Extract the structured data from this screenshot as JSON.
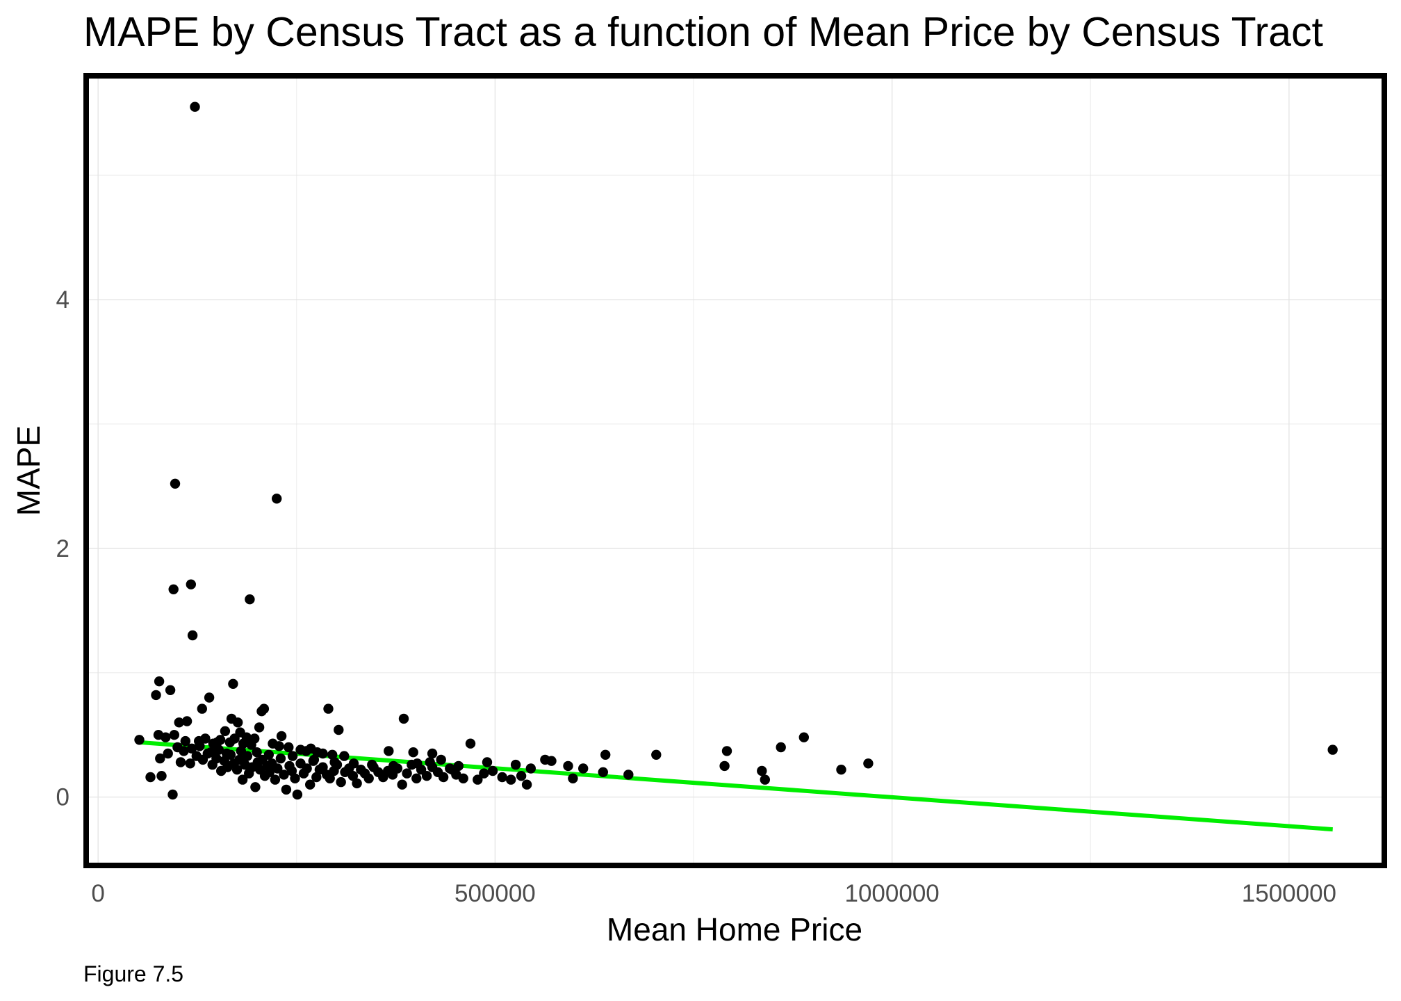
{
  "chart_data": {
    "type": "scatter",
    "title": "MAPE by Census Tract as a function of Mean Price by Census Tract",
    "xlabel": "Mean Home Price",
    "ylabel": "MAPE",
    "caption": "Figure 7.5",
    "xlim": [
      -15000,
      1620000
    ],
    "ylim": [
      -0.55,
      5.8
    ],
    "x_ticks": [
      0,
      500000,
      1000000,
      1500000
    ],
    "x_tick_labels": [
      "0",
      "500000",
      "1000000",
      "1500000"
    ],
    "y_ticks": [
      0,
      2,
      4
    ],
    "y_tick_labels": [
      "0",
      "2",
      "4"
    ],
    "grid": true,
    "legend": "none",
    "point_color": "#000000",
    "trend_line": {
      "method": "linear",
      "color": "#00ee00",
      "x": [
        52000,
        1555000
      ],
      "y": [
        0.44,
        -0.26
      ]
    },
    "points": [
      [
        122000,
        5.55
      ],
      [
        97000,
        2.52
      ],
      [
        225000,
        2.4
      ],
      [
        95000,
        1.67
      ],
      [
        117000,
        1.71
      ],
      [
        191000,
        1.59
      ],
      [
        119000,
        1.3
      ],
      [
        91000,
        0.86
      ],
      [
        77000,
        0.93
      ],
      [
        73000,
        0.82
      ],
      [
        170000,
        0.91
      ],
      [
        140000,
        0.8
      ],
      [
        131000,
        0.71
      ],
      [
        209000,
        0.71
      ],
      [
        206000,
        0.69
      ],
      [
        290000,
        0.71
      ],
      [
        385000,
        0.63
      ],
      [
        102000,
        0.6
      ],
      [
        112000,
        0.61
      ],
      [
        168000,
        0.63
      ],
      [
        176000,
        0.6
      ],
      [
        203000,
        0.56
      ],
      [
        303000,
        0.54
      ],
      [
        160000,
        0.53
      ],
      [
        179000,
        0.52
      ],
      [
        187000,
        0.48
      ],
      [
        197000,
        0.47
      ],
      [
        231000,
        0.49
      ],
      [
        469000,
        0.43
      ],
      [
        889000,
        0.48
      ],
      [
        860000,
        0.4
      ],
      [
        52000,
        0.46
      ],
      [
        76000,
        0.5
      ],
      [
        85000,
        0.48
      ],
      [
        96000,
        0.5
      ],
      [
        110000,
        0.45
      ],
      [
        127000,
        0.45
      ],
      [
        135000,
        0.47
      ],
      [
        145000,
        0.43
      ],
      [
        150000,
        0.44
      ],
      [
        154000,
        0.46
      ],
      [
        166000,
        0.44
      ],
      [
        172000,
        0.47
      ],
      [
        183000,
        0.43
      ],
      [
        193000,
        0.42
      ],
      [
        220000,
        0.43
      ],
      [
        228000,
        0.41
      ],
      [
        240000,
        0.4
      ],
      [
        255000,
        0.38
      ],
      [
        262000,
        0.37
      ],
      [
        268000,
        0.39
      ],
      [
        276000,
        0.36
      ],
      [
        283000,
        0.35
      ],
      [
        295000,
        0.34
      ],
      [
        310000,
        0.33
      ],
      [
        366000,
        0.37
      ],
      [
        397000,
        0.36
      ],
      [
        421000,
        0.35
      ],
      [
        432000,
        0.3
      ],
      [
        454000,
        0.25
      ],
      [
        490000,
        0.28
      ],
      [
        526000,
        0.26
      ],
      [
        563000,
        0.3
      ],
      [
        571000,
        0.29
      ],
      [
        592000,
        0.25
      ],
      [
        611000,
        0.23
      ],
      [
        636000,
        0.2
      ],
      [
        639000,
        0.34
      ],
      [
        668000,
        0.18
      ],
      [
        703000,
        0.34
      ],
      [
        792000,
        0.37
      ],
      [
        789000,
        0.25
      ],
      [
        836000,
        0.21
      ],
      [
        840000,
        0.14
      ],
      [
        936000,
        0.22
      ],
      [
        970000,
        0.27
      ],
      [
        1555000,
        0.38
      ],
      [
        66000,
        0.16
      ],
      [
        80000,
        0.17
      ],
      [
        94000,
        0.02
      ],
      [
        78000,
        0.31
      ],
      [
        88000,
        0.35
      ],
      [
        104000,
        0.28
      ],
      [
        116000,
        0.27
      ],
      [
        124000,
        0.33
      ],
      [
        132000,
        0.3
      ],
      [
        138000,
        0.35
      ],
      [
        144000,
        0.26
      ],
      [
        149000,
        0.31
      ],
      [
        155000,
        0.21
      ],
      [
        159000,
        0.29
      ],
      [
        163000,
        0.24
      ],
      [
        167000,
        0.34
      ],
      [
        171000,
        0.27
      ],
      [
        175000,
        0.22
      ],
      [
        178000,
        0.3
      ],
      [
        182000,
        0.14
      ],
      [
        185000,
        0.26
      ],
      [
        188000,
        0.33
      ],
      [
        190000,
        0.19
      ],
      [
        194000,
        0.24
      ],
      [
        198000,
        0.08
      ],
      [
        201000,
        0.28
      ],
      [
        204000,
        0.22
      ],
      [
        207000,
        0.3
      ],
      [
        210000,
        0.17
      ],
      [
        213000,
        0.25
      ],
      [
        216000,
        0.2
      ],
      [
        219000,
        0.27
      ],
      [
        223000,
        0.14
      ],
      [
        226000,
        0.23
      ],
      [
        230000,
        0.31
      ],
      [
        234000,
        0.18
      ],
      [
        237000,
        0.06
      ],
      [
        241000,
        0.25
      ],
      [
        244000,
        0.21
      ],
      [
        248000,
        0.15
      ],
      [
        251000,
        0.02
      ],
      [
        255000,
        0.27
      ],
      [
        259000,
        0.19
      ],
      [
        263000,
        0.23
      ],
      [
        267000,
        0.1
      ],
      [
        271000,
        0.29
      ],
      [
        275000,
        0.16
      ],
      [
        279000,
        0.22
      ],
      [
        283000,
        0.24
      ],
      [
        288000,
        0.18
      ],
      [
        292000,
        0.15
      ],
      [
        297000,
        0.21
      ],
      [
        301000,
        0.26
      ],
      [
        306000,
        0.12
      ],
      [
        311000,
        0.2
      ],
      [
        316000,
        0.23
      ],
      [
        321000,
        0.17
      ],
      [
        326000,
        0.11
      ],
      [
        331000,
        0.22
      ],
      [
        336000,
        0.19
      ],
      [
        341000,
        0.15
      ],
      [
        347000,
        0.24
      ],
      [
        353000,
        0.2
      ],
      [
        359000,
        0.16
      ],
      [
        365000,
        0.21
      ],
      [
        371000,
        0.18
      ],
      [
        377000,
        0.23
      ],
      [
        383000,
        0.1
      ],
      [
        389000,
        0.19
      ],
      [
        395000,
        0.26
      ],
      [
        401000,
        0.15
      ],
      [
        407000,
        0.22
      ],
      [
        414000,
        0.17
      ],
      [
        421000,
        0.24
      ],
      [
        428000,
        0.2
      ],
      [
        435000,
        0.16
      ],
      [
        443000,
        0.23
      ],
      [
        451000,
        0.18
      ],
      [
        460000,
        0.15
      ],
      [
        478000,
        0.14
      ],
      [
        486000,
        0.19
      ],
      [
        497000,
        0.21
      ],
      [
        509000,
        0.16
      ],
      [
        520000,
        0.14
      ],
      [
        533000,
        0.17
      ],
      [
        540000,
        0.1
      ],
      [
        545000,
        0.23
      ],
      [
        598000,
        0.15
      ],
      [
        100000,
        0.4
      ],
      [
        108000,
        0.37
      ],
      [
        118000,
        0.39
      ],
      [
        128000,
        0.41
      ],
      [
        142000,
        0.36
      ],
      [
        152000,
        0.38
      ],
      [
        162000,
        0.35
      ],
      [
        180000,
        0.37
      ],
      [
        200000,
        0.36
      ],
      [
        215000,
        0.34
      ],
      [
        245000,
        0.33
      ],
      [
        272000,
        0.3
      ],
      [
        298000,
        0.28
      ],
      [
        322000,
        0.27
      ],
      [
        345000,
        0.26
      ],
      [
        372000,
        0.25
      ],
      [
        402000,
        0.27
      ],
      [
        418000,
        0.28
      ],
      [
        446000,
        0.22
      ]
    ]
  }
}
